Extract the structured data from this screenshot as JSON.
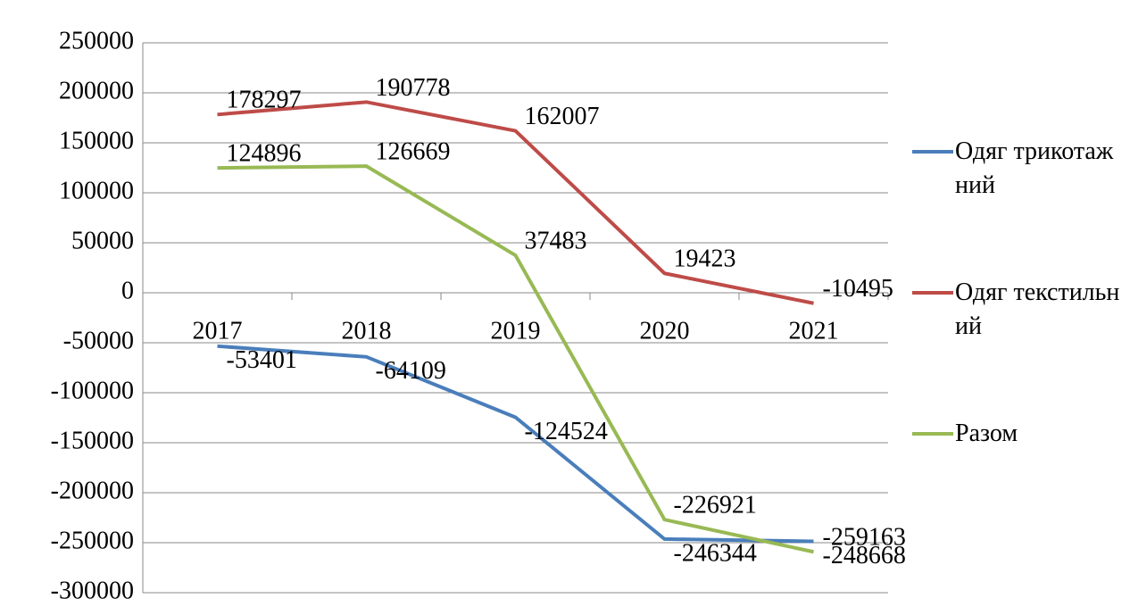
{
  "chart_data": {
    "type": "line",
    "categories": [
      "2017",
      "2018",
      "2019",
      "2020",
      "2021"
    ],
    "series": [
      {
        "name": "Одяг трикотажний",
        "color": "#4a7ebb",
        "values": [
          -53401,
          -64109,
          -124524,
          -246344,
          -248668
        ]
      },
      {
        "name": "Одяг текстильний",
        "color": "#be4b48",
        "values": [
          178297,
          190778,
          162007,
          19423,
          -10495
        ]
      },
      {
        "name": "Разом",
        "color": "#98b954",
        "values": [
          124896,
          126669,
          37483,
          -226921,
          -259163
        ]
      }
    ],
    "ylim": [
      -300000,
      250000
    ],
    "yticks": [
      -300000,
      -250000,
      -200000,
      -150000,
      -100000,
      -50000,
      0,
      50000,
      100000,
      150000,
      200000,
      250000
    ],
    "grid": true,
    "legend": "right"
  }
}
